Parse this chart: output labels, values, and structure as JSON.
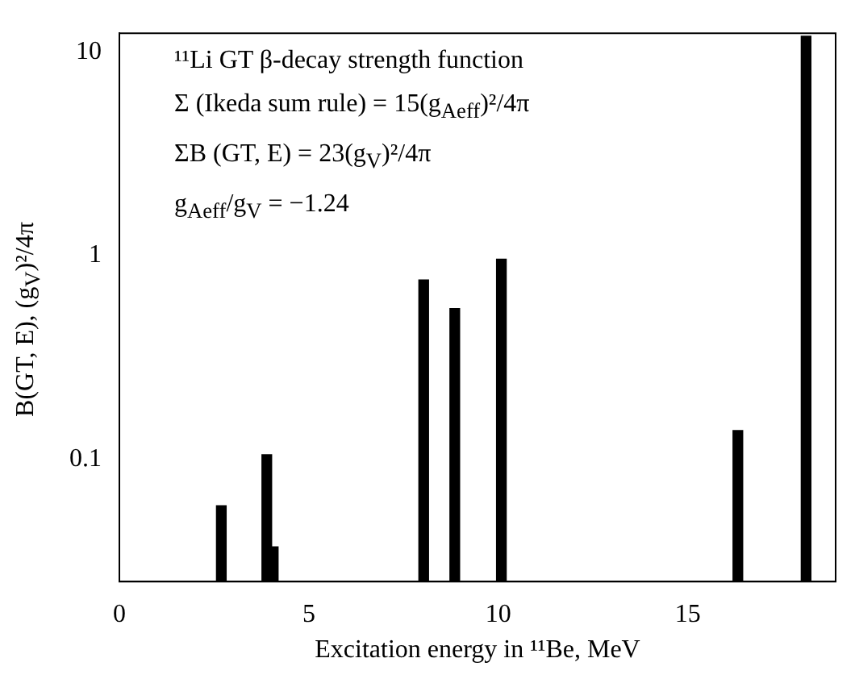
{
  "chart_data": {
    "type": "bar",
    "x": [
      2.69,
      3.89,
      4.06,
      8.03,
      8.85,
      10.08,
      16.32,
      18.12
    ],
    "values": [
      0.059,
      0.105,
      0.037,
      0.76,
      0.55,
      0.96,
      0.138,
      12
    ],
    "color": "#000000",
    "xlim": [
      0,
      18.9
    ],
    "xticks": [
      0,
      5,
      10,
      15
    ],
    "ylim": [
      0.025,
      12.4
    ],
    "yticks": [
      0.1,
      1,
      10
    ],
    "log": true,
    "grid": false,
    "xlabel": "Excitation energy in ¹¹Be, MeV",
    "ylabel": "B(GT, E), (g$_{V}$)²/4π",
    "annotations": [
      "¹¹Li GT β-decay strength function",
      "Σ (Ikeda sum rule) = 15(g$_{Aeff}$)²/4π",
      "ΣB (GT, E) = 23(g$_{V}$)²/4π",
      "g$_{Aeff}$/g$_{V}$ = −1.24"
    ]
  }
}
